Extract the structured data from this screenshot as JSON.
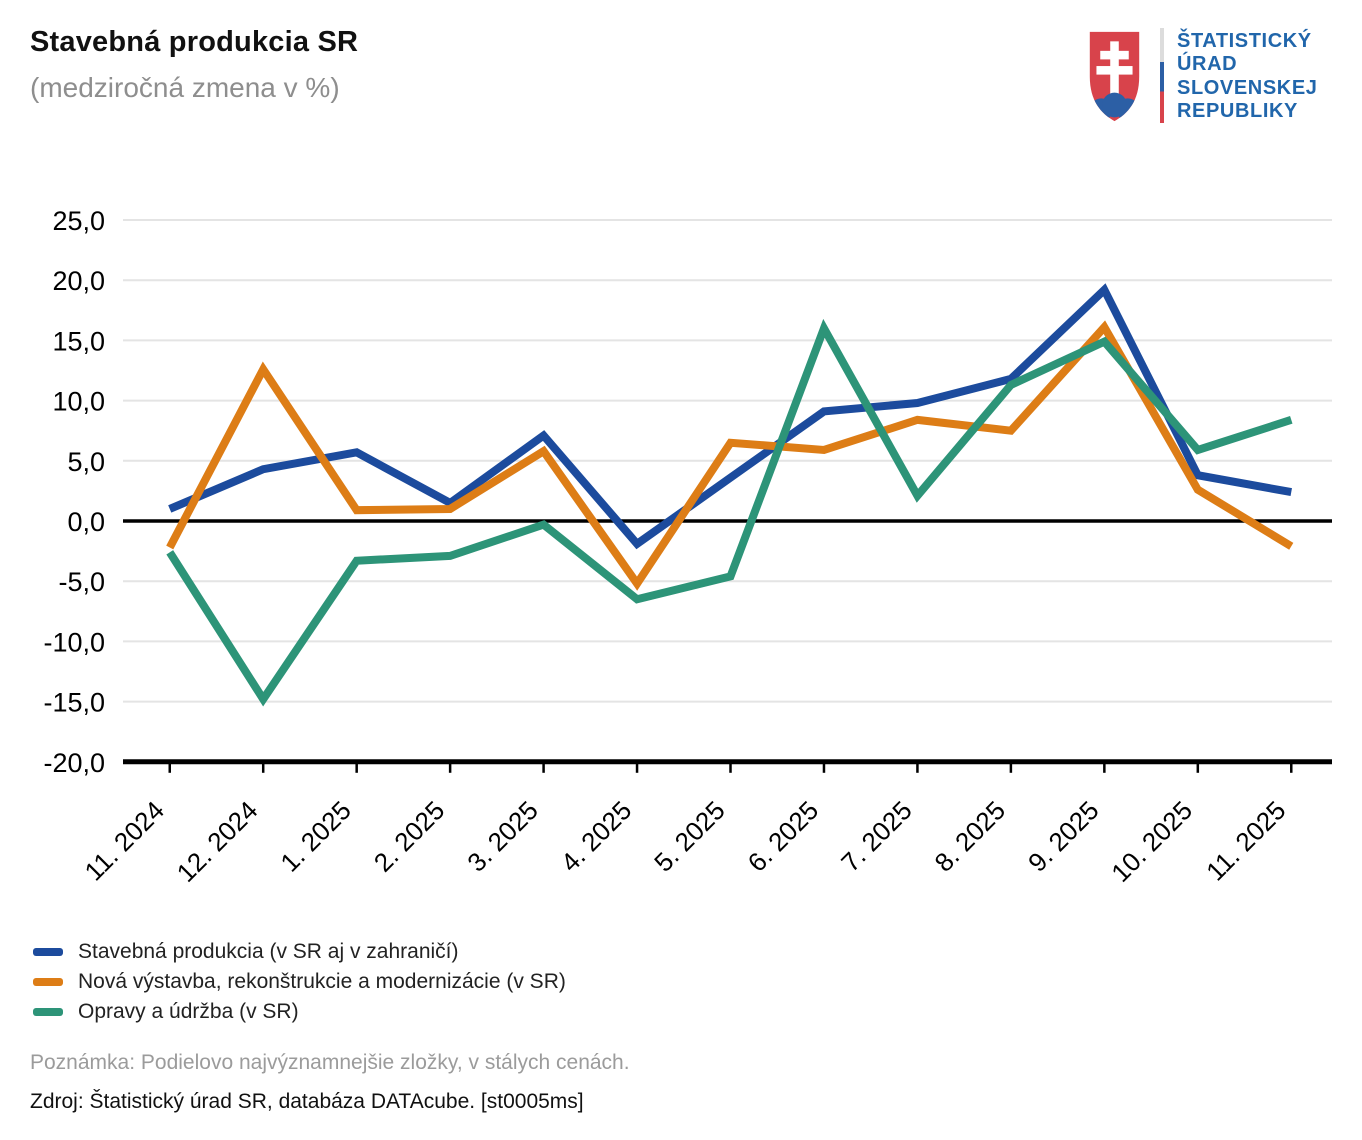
{
  "header": {
    "title": "Stavebná produkcia SR",
    "subtitle": "(medziročná zmena v %)"
  },
  "logo": {
    "lines": [
      "ŠTATISTICKÝ",
      "ÚRAD",
      "SLOVENSKEJ",
      "REPUBLIKY"
    ],
    "colors": {
      "text": "#2166ab",
      "shield_red": "#d8434b",
      "shield_blue": "#2c5fa5",
      "cross_white": "#ffffff",
      "bar_top": "#dcdcdc",
      "bar_mid": "#2c5fa5",
      "bar_bottom": "#d8434b"
    }
  },
  "chart_data": {
    "type": "line",
    "title": "Stavebná produkcia SR",
    "subtitle": "(medziročná zmena v %)",
    "xlabel": "",
    "ylabel": "",
    "ylim": [
      -20,
      25
    ],
    "ytick_step": 5,
    "grid": true,
    "legend_position": "bottom",
    "categories": [
      "11. 2024",
      "12. 2024",
      "1. 2025",
      "2. 2025",
      "3. 2025",
      "4. 2025",
      "5. 2025",
      "6. 2025",
      "7. 2025",
      "8. 2025",
      "9. 2025",
      "10. 2025",
      "11. 2025"
    ],
    "yticks": {
      "values": [
        25,
        20,
        15,
        10,
        5,
        0,
        -5,
        -10,
        -15,
        -20
      ],
      "labels": [
        "25,0",
        "20,0",
        "15,0",
        "10,0",
        "5,0",
        "0,0",
        "-5,0",
        "-10,0",
        "-15,0",
        "-20,0"
      ]
    },
    "series": [
      {
        "name": "Stavebná produkcia (v SR aj v zahraničí)",
        "color": "#1c4b9d",
        "values": [
          1.0,
          4.3,
          5.7,
          1.5,
          7.1,
          -1.9,
          3.6,
          9.1,
          9.8,
          11.8,
          19.2,
          3.8,
          2.4
        ]
      },
      {
        "name": "Nová výstavba, rekonštrukcie a modernizácie (v SR)",
        "color": "#dd7d16",
        "values": [
          -2.2,
          12.6,
          0.9,
          1.0,
          5.8,
          -5.2,
          6.5,
          5.9,
          8.4,
          7.5,
          16.1,
          2.6,
          -2.1
        ]
      },
      {
        "name": "Opravy a údržba (v SR)",
        "color": "#2d9478",
        "values": [
          -2.6,
          -14.8,
          -3.3,
          -2.9,
          -0.3,
          -6.5,
          -4.6,
          16.0,
          2.1,
          11.3,
          14.9,
          5.9,
          8.4
        ]
      }
    ],
    "axis_colors": {
      "grid": "#e4e4e4",
      "zero_line": "#000000",
      "axis_line": "#000000",
      "tick_text": "#000000"
    }
  },
  "footer": {
    "note": "Poznámka: Podielovo najvýznamnejšie zložky, v stálych cenách.",
    "source": "Zdroj: Štatistický úrad SR, databáza DATAcube. [st0005ms]"
  }
}
